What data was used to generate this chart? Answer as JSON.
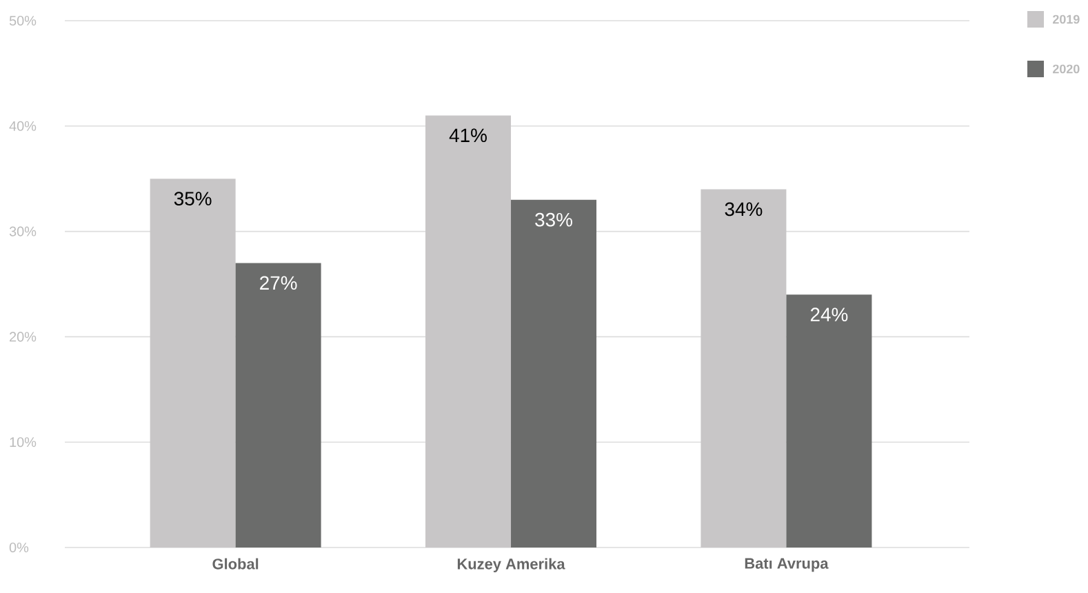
{
  "chart_data": {
    "type": "bar",
    "categories": [
      "Global",
      "Kuzey Amerika",
      "Batı Avrupa"
    ],
    "series": [
      {
        "name": "2019",
        "color": "#c8c6c7",
        "values": [
          35,
          41,
          34
        ],
        "value_labels": [
          "35%",
          "41%",
          "34%"
        ]
      },
      {
        "name": "2020",
        "color": "#6b6c6b",
        "values": [
          27,
          33,
          24
        ],
        "value_labels": [
          "27%",
          "33%",
          "24%"
        ]
      }
    ],
    "ylim": [
      0,
      50
    ],
    "yticks": [
      {
        "value": 0,
        "label": "0%"
      },
      {
        "value": 10,
        "label": "10%"
      },
      {
        "value": 20,
        "label": "20%"
      },
      {
        "value": 30,
        "label": "30%"
      },
      {
        "value": 40,
        "label": "40%"
      },
      {
        "value": 50,
        "label": "50%"
      }
    ],
    "grid": "y",
    "legend": "top right"
  }
}
